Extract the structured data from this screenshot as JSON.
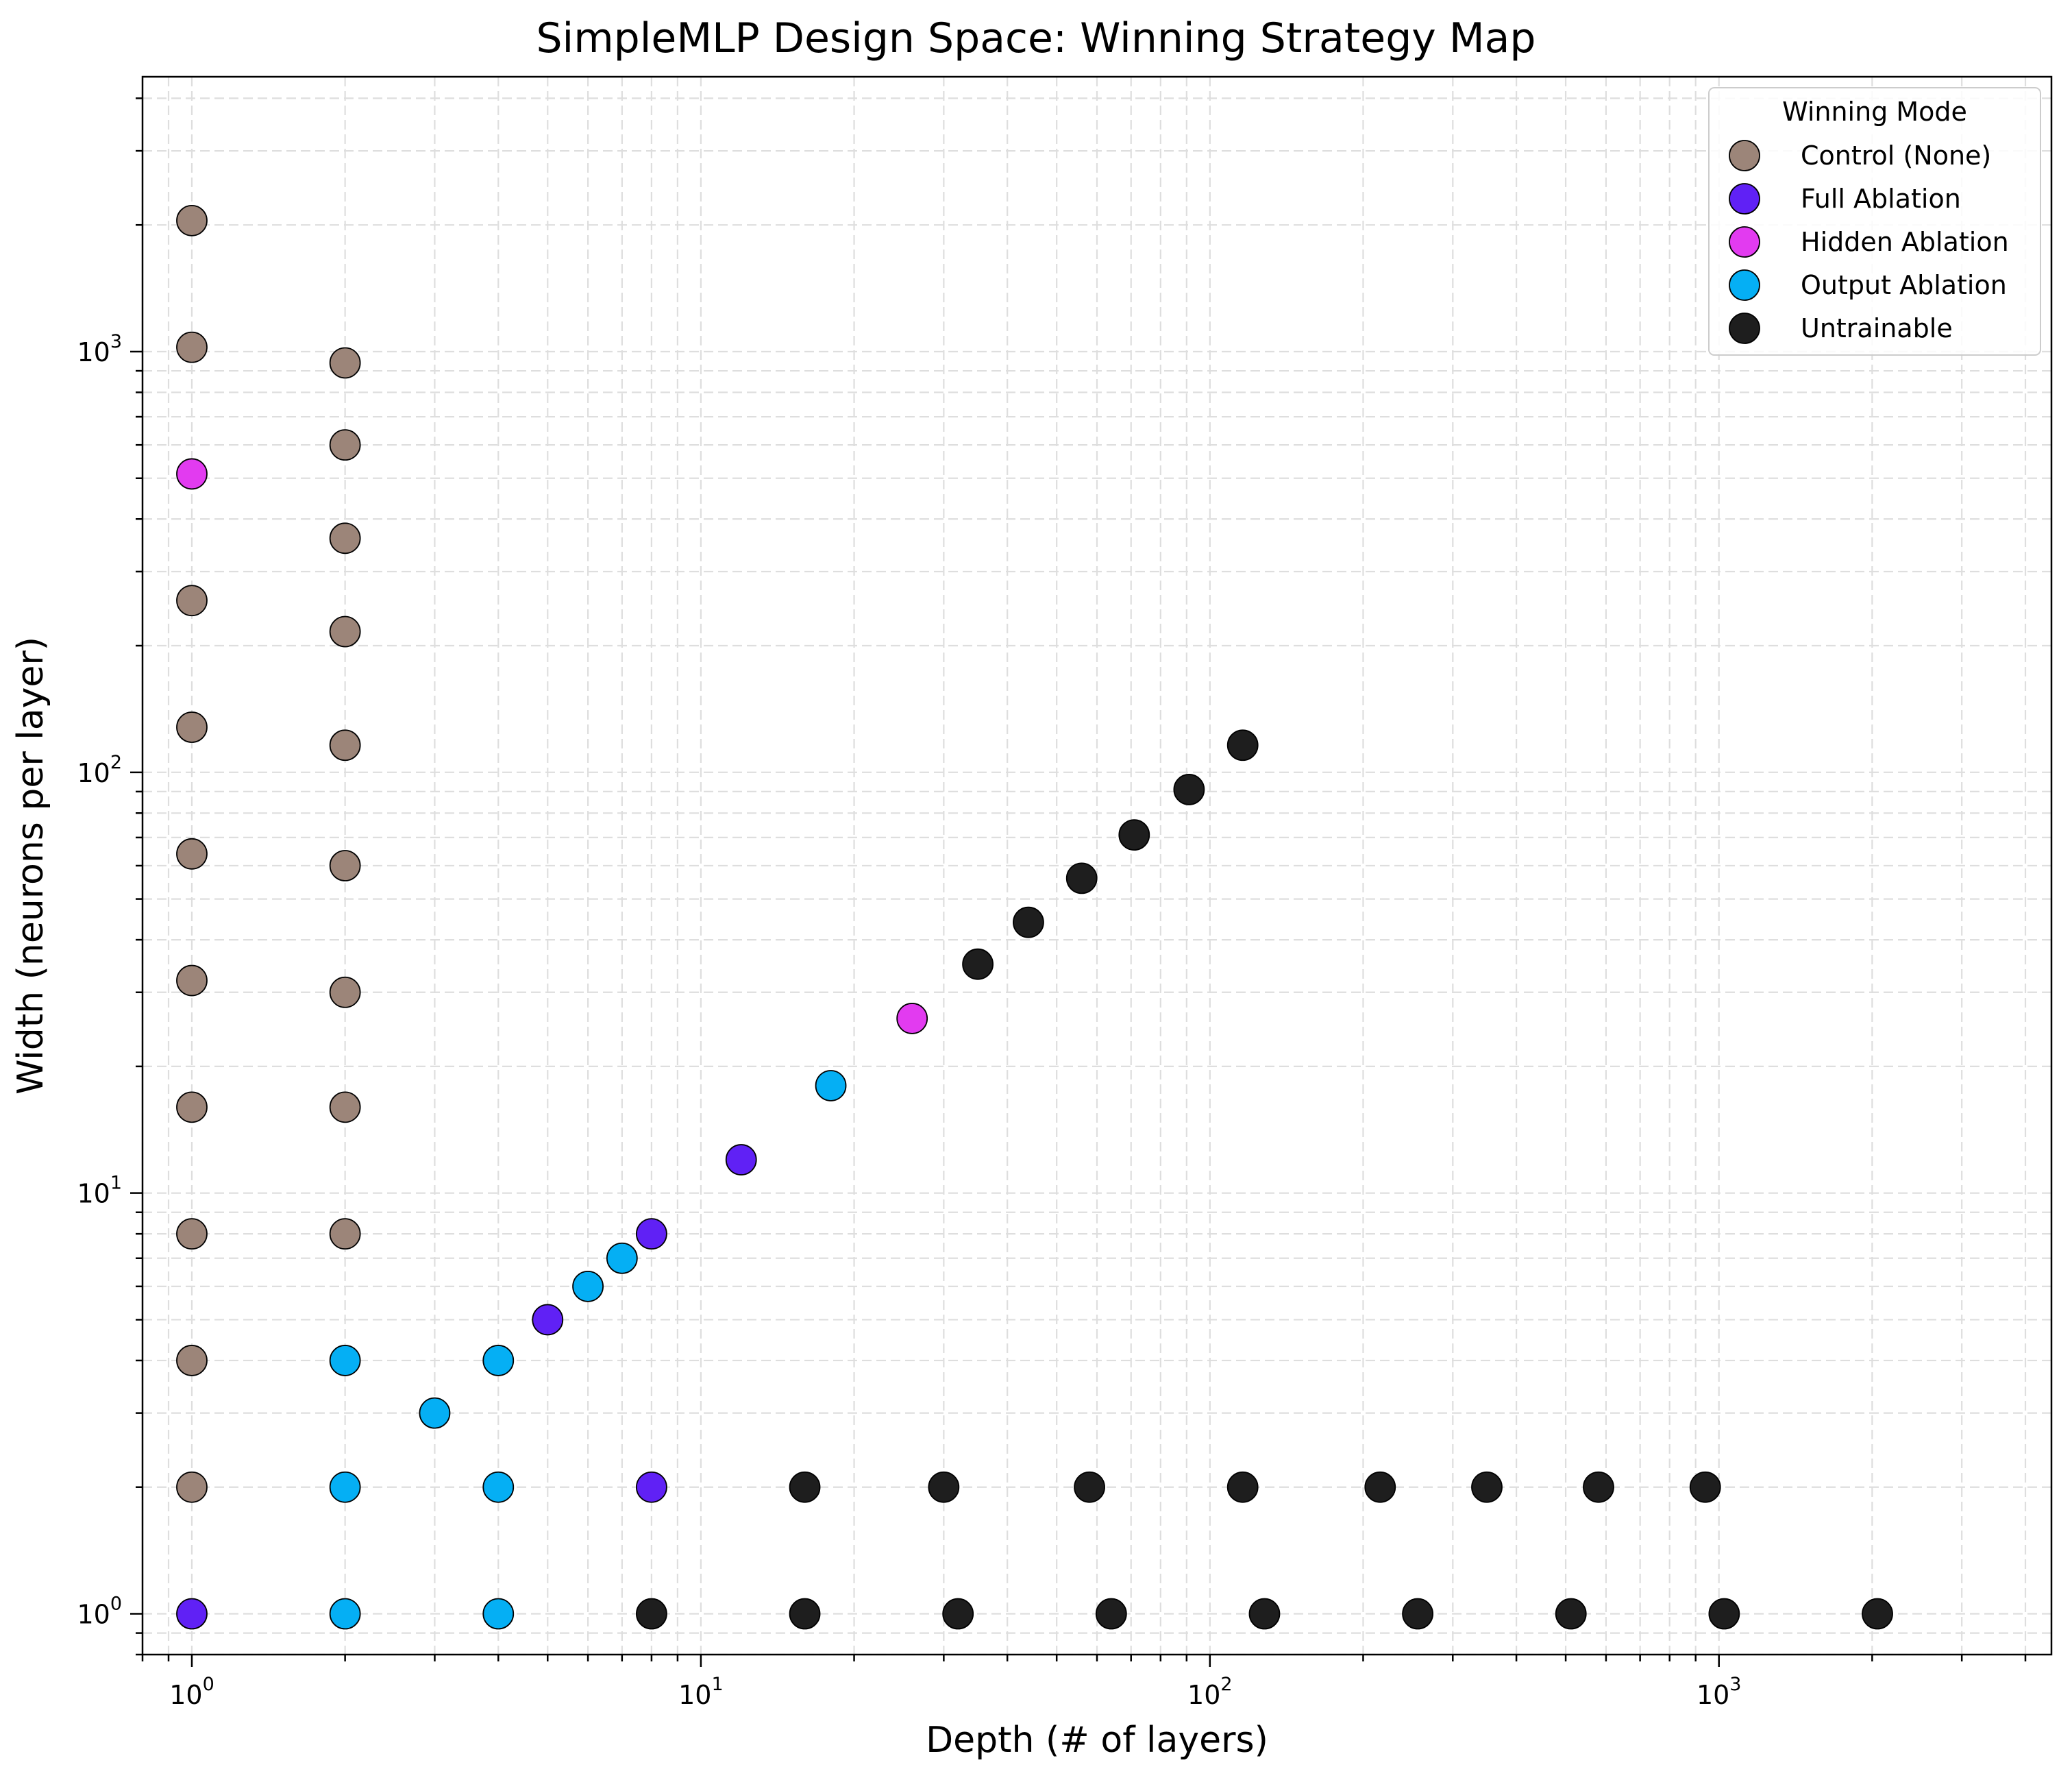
{
  "chart_data": {
    "type": "scatter",
    "title": "SimpleMLP Design Space: Winning Strategy Map",
    "xlabel": "Depth (# of layers)",
    "ylabel": "Width (neurons per layer)",
    "xscale": "log",
    "yscale": "log",
    "xlim": [
      0.8,
      4500
    ],
    "ylim": [
      0.8,
      4500
    ],
    "grid": true,
    "legend": {
      "title": "Winning Mode",
      "position": "top-right"
    },
    "x_tick_labels": [
      {
        "value": 1,
        "base": "10",
        "exp": "0"
      },
      {
        "value": 10,
        "base": "10",
        "exp": "1"
      },
      {
        "value": 100,
        "base": "10",
        "exp": "2"
      },
      {
        "value": 1000,
        "base": "10",
        "exp": "3"
      }
    ],
    "y_tick_labels": [
      {
        "value": 1,
        "base": "10",
        "exp": "0"
      },
      {
        "value": 10,
        "base": "10",
        "exp": "1"
      },
      {
        "value": 100,
        "base": "10",
        "exp": "2"
      },
      {
        "value": 1000,
        "base": "10",
        "exp": "3"
      }
    ],
    "series": [
      {
        "name": "Control (None)",
        "color": "#9c8579",
        "points": [
          [
            1,
            2
          ],
          [
            1,
            4
          ],
          [
            1,
            8
          ],
          [
            1,
            16
          ],
          [
            1,
            32
          ],
          [
            1,
            64
          ],
          [
            1,
            128
          ],
          [
            1,
            256
          ],
          [
            1,
            1024
          ],
          [
            1,
            2048
          ],
          [
            2,
            8
          ],
          [
            2,
            16
          ],
          [
            2,
            30
          ],
          [
            2,
            60
          ],
          [
            2,
            116
          ],
          [
            2,
            216
          ],
          [
            2,
            360
          ],
          [
            2,
            600
          ],
          [
            2,
            940
          ]
        ]
      },
      {
        "name": "Full Ablation",
        "color": "#6021f5",
        "points": [
          [
            1,
            1
          ],
          [
            5,
            5
          ],
          [
            8,
            8
          ],
          [
            8,
            2
          ],
          [
            12,
            12
          ]
        ]
      },
      {
        "name": "Hidden Ablation",
        "color": "#e23bf0",
        "points": [
          [
            1,
            512
          ],
          [
            26,
            26
          ]
        ]
      },
      {
        "name": "Output Ablation",
        "color": "#05aff4",
        "points": [
          [
            2,
            1
          ],
          [
            2,
            2
          ],
          [
            2,
            4
          ],
          [
            3,
            3
          ],
          [
            4,
            1
          ],
          [
            4,
            2
          ],
          [
            4,
            4
          ],
          [
            6,
            6
          ],
          [
            7,
            7
          ],
          [
            18,
            18
          ]
        ]
      },
      {
        "name": "Untrainable",
        "color": "#1e1e1e",
        "points": [
          [
            8,
            1
          ],
          [
            16,
            1
          ],
          [
            32,
            1
          ],
          [
            64,
            1
          ],
          [
            128,
            1
          ],
          [
            256,
            1
          ],
          [
            512,
            1
          ],
          [
            1024,
            1
          ],
          [
            2048,
            1
          ],
          [
            16,
            2
          ],
          [
            30,
            2
          ],
          [
            58,
            2
          ],
          [
            116,
            2
          ],
          [
            216,
            2
          ],
          [
            350,
            2
          ],
          [
            580,
            2
          ],
          [
            940,
            2
          ],
          [
            35,
            35
          ],
          [
            44,
            44
          ],
          [
            56,
            56
          ],
          [
            71,
            71
          ],
          [
            91,
            91
          ],
          [
            116,
            116
          ]
        ]
      }
    ]
  }
}
